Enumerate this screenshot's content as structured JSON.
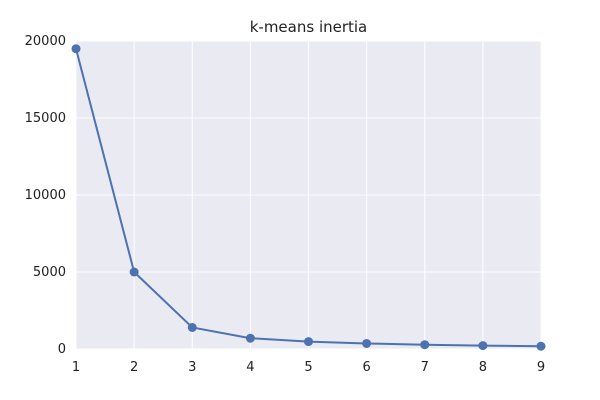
{
  "chart_data": {
    "type": "line",
    "title": "k-means inertia",
    "xlabel": "",
    "ylabel": "",
    "x": [
      1,
      2,
      3,
      4,
      5,
      6,
      7,
      8,
      9
    ],
    "series": [
      {
        "values": [
          19500,
          5000,
          1400,
          700,
          480,
          360,
          280,
          220,
          180
        ]
      }
    ],
    "xlim": [
      1,
      9
    ],
    "ylim": [
      0,
      20000
    ],
    "xticks": [
      1,
      2,
      3,
      4,
      5,
      6,
      7,
      8,
      9
    ],
    "yticks": [
      0,
      5000,
      10000,
      15000,
      20000
    ],
    "grid": true,
    "style": {
      "line_color": "#4c72b0",
      "plot_background": "#eaeaf2",
      "grid_color": "#ffffff"
    }
  }
}
